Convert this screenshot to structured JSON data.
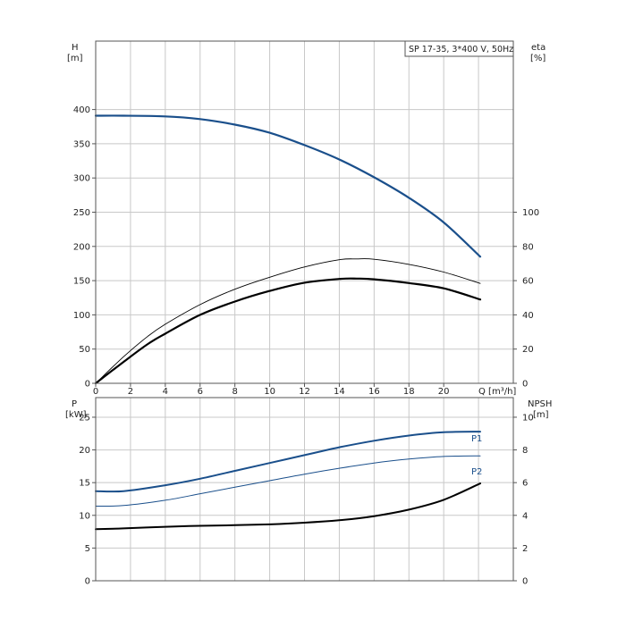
{
  "title_box": "SP 17-35, 3*400 V, 50Hz",
  "colors": {
    "blue": "#1a4f8b",
    "black": "#000000",
    "grid": "#c8c8c8"
  },
  "chart_data": [
    {
      "type": "line",
      "xlabel": "Q [m³/h]",
      "x_ticks": [
        "0",
        "2",
        "4",
        "6",
        "8",
        "10",
        "12",
        "14",
        "16",
        "18",
        "20"
      ],
      "xlim": [
        0,
        24
      ],
      "left_axis": {
        "label": "H",
        "unit": "[m]",
        "ticks": [
          "0",
          "50",
          "100",
          "150",
          "200",
          "250",
          "300",
          "350",
          "400"
        ],
        "ylim": [
          0,
          500
        ]
      },
      "right_axis": {
        "label": "eta",
        "unit": "[%]",
        "ticks": [
          "0",
          "20",
          "40",
          "60",
          "80",
          "100"
        ],
        "ylim": [
          0,
          200
        ]
      },
      "grid": true,
      "series": [
        {
          "axis": "left",
          "color": "#1a4f8b",
          "width": 2.2,
          "x": [
            0,
            1.6,
            4,
            6,
            8,
            10,
            12,
            14,
            16,
            18,
            20,
            22.1
          ],
          "y": [
            391,
            391,
            390,
            386,
            378,
            366,
            348,
            327,
            301,
            271,
            235,
            185
          ]
        },
        {
          "axis": "left",
          "color": "#1a4f8b",
          "width": 0.8,
          "x": [
            0,
            1.6
          ],
          "y": [
            391,
            391
          ]
        },
        {
          "axis": "right",
          "color": "#000000",
          "width": 0.9,
          "x": [
            0,
            1.6,
            3,
            4,
            6,
            8,
            10,
            12,
            14,
            15,
            16,
            18,
            20,
            22.1
          ],
          "y": [
            0,
            15.5,
            27.5,
            34.5,
            46,
            55,
            62,
            68,
            72.2,
            72.7,
            72.5,
            69.5,
            65,
            58.4
          ]
        },
        {
          "axis": "right",
          "color": "#000000",
          "width": 2.2,
          "x": [
            0,
            1.6,
            3,
            4,
            6,
            8,
            10,
            12,
            14,
            15,
            16,
            18,
            20,
            22.1
          ],
          "y": [
            0,
            12.5,
            23,
            29,
            40,
            47.8,
            54,
            58.8,
            61,
            61.2,
            60.8,
            58.6,
            55.5,
            49
          ]
        }
      ]
    },
    {
      "type": "line",
      "xlim": [
        0,
        24
      ],
      "left_axis": {
        "label": "P",
        "unit": "[kW]",
        "ticks": [
          "0",
          "5",
          "10",
          "15",
          "20",
          "25"
        ],
        "ylim": [
          0,
          28
        ]
      },
      "right_axis": {
        "label": "NPSH",
        "unit": "[m]",
        "ticks": [
          "0",
          "2",
          "4",
          "6",
          "8",
          "10"
        ],
        "ylim": [
          0,
          11.2
        ]
      },
      "grid": true,
      "series": [
        {
          "name": "P1",
          "axis": "left",
          "color": "#1a4f8b",
          "width": 2.0,
          "x": [
            0,
            1.6,
            4,
            6,
            8,
            10,
            12,
            14,
            16,
            18,
            20,
            22.1
          ],
          "y": [
            13.7,
            13.7,
            14.6,
            15.6,
            16.8,
            18.0,
            19.2,
            20.4,
            21.4,
            22.2,
            22.7,
            22.8
          ]
        },
        {
          "name": "P2",
          "axis": "left",
          "color": "#1a4f8b",
          "width": 1.0,
          "x": [
            0,
            1.6,
            4,
            6,
            8,
            10,
            12,
            14,
            16,
            18,
            20,
            22.1
          ],
          "y": [
            11.4,
            11.5,
            12.3,
            13.3,
            14.3,
            15.3,
            16.3,
            17.2,
            18.0,
            18.6,
            19.0,
            19.1
          ]
        },
        {
          "axis": "right",
          "color": "#000000",
          "width": 2.0,
          "x": [
            0,
            1.6,
            4,
            6,
            8,
            10,
            12,
            14,
            16,
            18,
            20,
            22.1
          ],
          "y": [
            3.15,
            3.2,
            3.3,
            3.36,
            3.4,
            3.45,
            3.55,
            3.7,
            3.95,
            4.35,
            4.95,
            5.95
          ]
        }
      ]
    }
  ]
}
